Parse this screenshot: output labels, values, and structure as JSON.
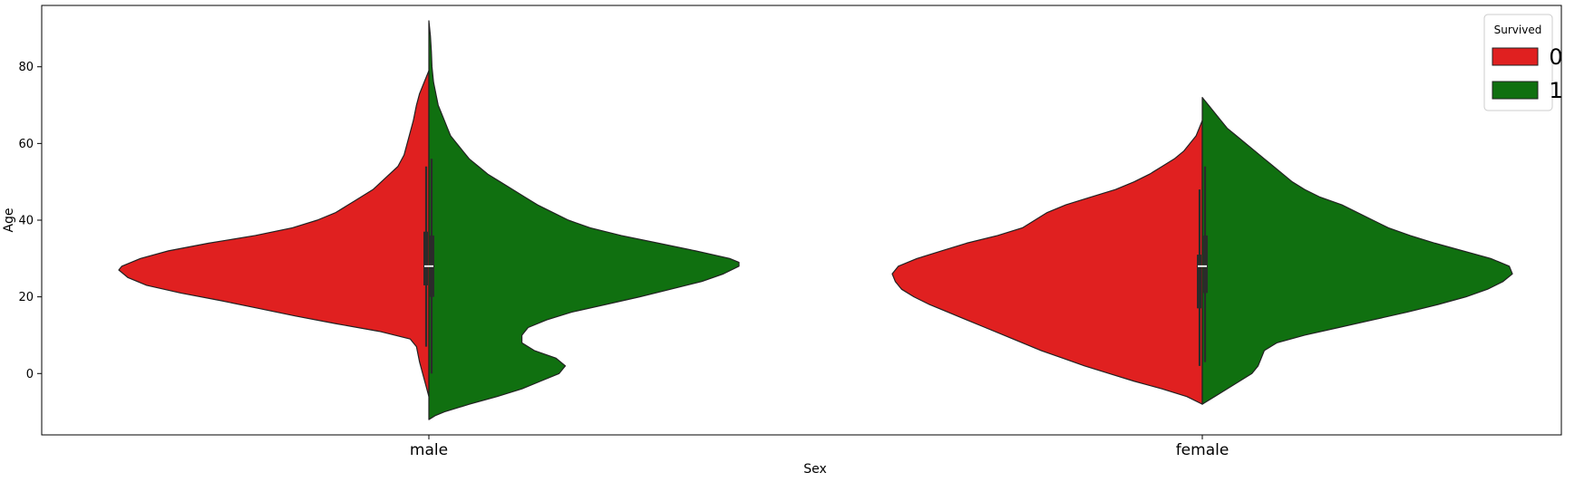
{
  "chart_data": {
    "type": "violin",
    "split": true,
    "categories": [
      "male",
      "female"
    ],
    "xlabel": "Sex",
    "ylabel": "Age",
    "ylim": [
      -16,
      96
    ],
    "yticks": [
      0,
      20,
      40,
      60,
      80
    ],
    "grid": false,
    "legend": {
      "title": "Survived",
      "placement": "top-right",
      "entries": [
        {
          "label": "0",
          "color": "#e02020"
        },
        {
          "label": "1",
          "color": "#107010"
        }
      ]
    },
    "box_color": "#2b2b2b",
    "median_color": "#ffffff",
    "series": [
      {
        "name": "0",
        "color": "#e02020",
        "side": "left",
        "violins": [
          {
            "category": "male",
            "box": {
              "whisker_low": 7,
              "q1": 23,
              "median": 28,
              "q3": 37,
              "whisker_high": 54
            },
            "density": [
              [
                -6,
                0.0
              ],
              [
                -3,
                0.01
              ],
              [
                0,
                0.02
              ],
              [
                3,
                0.03
              ],
              [
                5,
                0.035
              ],
              [
                7,
                0.04
              ],
              [
                9,
                0.06
              ],
              [
                11,
                0.16
              ],
              [
                13,
                0.3
              ],
              [
                15,
                0.43
              ],
              [
                17,
                0.55
              ],
              [
                19,
                0.67
              ],
              [
                21,
                0.8
              ],
              [
                23,
                0.91
              ],
              [
                25,
                0.97
              ],
              [
                27,
                1.0
              ],
              [
                28,
                0.99
              ],
              [
                30,
                0.93
              ],
              [
                32,
                0.84
              ],
              [
                34,
                0.71
              ],
              [
                36,
                0.56
              ],
              [
                38,
                0.44
              ],
              [
                40,
                0.36
              ],
              [
                42,
                0.3
              ],
              [
                45,
                0.24
              ],
              [
                48,
                0.18
              ],
              [
                51,
                0.14
              ],
              [
                54,
                0.1
              ],
              [
                57,
                0.08
              ],
              [
                60,
                0.07
              ],
              [
                63,
                0.06
              ],
              [
                66,
                0.05
              ],
              [
                70,
                0.04
              ],
              [
                73,
                0.03
              ],
              [
                76,
                0.015
              ],
              [
                79,
                0.0
              ]
            ]
          },
          {
            "category": "female",
            "box": {
              "whisker_low": 2,
              "q1": 17,
              "median": 28,
              "q3": 31,
              "whisker_high": 48
            },
            "density": [
              [
                -8,
                0.0
              ],
              [
                -6,
                0.05
              ],
              [
                -4,
                0.13
              ],
              [
                -2,
                0.22
              ],
              [
                0,
                0.3
              ],
              [
                2,
                0.38
              ],
              [
                4,
                0.45
              ],
              [
                6,
                0.52
              ],
              [
                8,
                0.58
              ],
              [
                10,
                0.64
              ],
              [
                12,
                0.7
              ],
              [
                14,
                0.76
              ],
              [
                16,
                0.82
              ],
              [
                18,
                0.88
              ],
              [
                20,
                0.93
              ],
              [
                22,
                0.97
              ],
              [
                24,
                0.99
              ],
              [
                26,
                1.0
              ],
              [
                28,
                0.98
              ],
              [
                30,
                0.92
              ],
              [
                32,
                0.84
              ],
              [
                34,
                0.76
              ],
              [
                36,
                0.66
              ],
              [
                38,
                0.58
              ],
              [
                40,
                0.54
              ],
              [
                42,
                0.5
              ],
              [
                44,
                0.44
              ],
              [
                46,
                0.36
              ],
              [
                48,
                0.28
              ],
              [
                50,
                0.22
              ],
              [
                52,
                0.17
              ],
              [
                54,
                0.13
              ],
              [
                56,
                0.09
              ],
              [
                58,
                0.06
              ],
              [
                60,
                0.04
              ],
              [
                62,
                0.02
              ],
              [
                64,
                0.01
              ],
              [
                66,
                0.0
              ]
            ]
          }
        ]
      },
      {
        "name": "1",
        "color": "#107010",
        "side": "right",
        "violins": [
          {
            "category": "male",
            "box": {
              "whisker_low": 0,
              "q1": 20,
              "median": 28,
              "q3": 36,
              "whisker_high": 56
            },
            "density": [
              [
                -12,
                0.0
              ],
              [
                -11,
                0.02
              ],
              [
                -10,
                0.05
              ],
              [
                -8,
                0.13
              ],
              [
                -6,
                0.22
              ],
              [
                -4,
                0.3
              ],
              [
                -2,
                0.36
              ],
              [
                0,
                0.42
              ],
              [
                2,
                0.44
              ],
              [
                4,
                0.41
              ],
              [
                6,
                0.34
              ],
              [
                8,
                0.3
              ],
              [
                10,
                0.3
              ],
              [
                12,
                0.32
              ],
              [
                14,
                0.38
              ],
              [
                16,
                0.46
              ],
              [
                18,
                0.57
              ],
              [
                20,
                0.68
              ],
              [
                22,
                0.78
              ],
              [
                24,
                0.88
              ],
              [
                26,
                0.95
              ],
              [
                28,
                1.0
              ],
              [
                29,
                1.0
              ],
              [
                30,
                0.97
              ],
              [
                32,
                0.86
              ],
              [
                34,
                0.74
              ],
              [
                36,
                0.62
              ],
              [
                38,
                0.52
              ],
              [
                40,
                0.45
              ],
              [
                42,
                0.4
              ],
              [
                44,
                0.35
              ],
              [
                46,
                0.31
              ],
              [
                48,
                0.27
              ],
              [
                50,
                0.23
              ],
              [
                52,
                0.19
              ],
              [
                54,
                0.16
              ],
              [
                56,
                0.13
              ],
              [
                58,
                0.11
              ],
              [
                60,
                0.09
              ],
              [
                62,
                0.07
              ],
              [
                64,
                0.06
              ],
              [
                66,
                0.05
              ],
              [
                68,
                0.04
              ],
              [
                70,
                0.03
              ],
              [
                72,
                0.025
              ],
              [
                74,
                0.02
              ],
              [
                76,
                0.015
              ],
              [
                80,
                0.01
              ],
              [
                84,
                0.008
              ],
              [
                88,
                0.005
              ],
              [
                92,
                0.0
              ]
            ]
          },
          {
            "category": "female",
            "box": {
              "whisker_low": 3,
              "q1": 21,
              "median": 28,
              "q3": 36,
              "whisker_high": 54
            },
            "density": [
              [
                -8,
                0.0
              ],
              [
                -6,
                0.04
              ],
              [
                -4,
                0.08
              ],
              [
                -2,
                0.12
              ],
              [
                0,
                0.16
              ],
              [
                2,
                0.18
              ],
              [
                4,
                0.19
              ],
              [
                6,
                0.2
              ],
              [
                8,
                0.24
              ],
              [
                10,
                0.33
              ],
              [
                12,
                0.44
              ],
              [
                14,
                0.55
              ],
              [
                16,
                0.66
              ],
              [
                18,
                0.76
              ],
              [
                20,
                0.85
              ],
              [
                22,
                0.92
              ],
              [
                24,
                0.97
              ],
              [
                26,
                1.0
              ],
              [
                28,
                0.99
              ],
              [
                30,
                0.93
              ],
              [
                32,
                0.84
              ],
              [
                34,
                0.75
              ],
              [
                36,
                0.67
              ],
              [
                38,
                0.6
              ],
              [
                40,
                0.55
              ],
              [
                42,
                0.5
              ],
              [
                44,
                0.45
              ],
              [
                46,
                0.38
              ],
              [
                48,
                0.33
              ],
              [
                50,
                0.29
              ],
              [
                52,
                0.26
              ],
              [
                54,
                0.23
              ],
              [
                56,
                0.2
              ],
              [
                58,
                0.17
              ],
              [
                60,
                0.14
              ],
              [
                62,
                0.11
              ],
              [
                64,
                0.08
              ],
              [
                66,
                0.06
              ],
              [
                68,
                0.04
              ],
              [
                70,
                0.02
              ],
              [
                72,
                0.0
              ]
            ]
          }
        ]
      }
    ]
  }
}
